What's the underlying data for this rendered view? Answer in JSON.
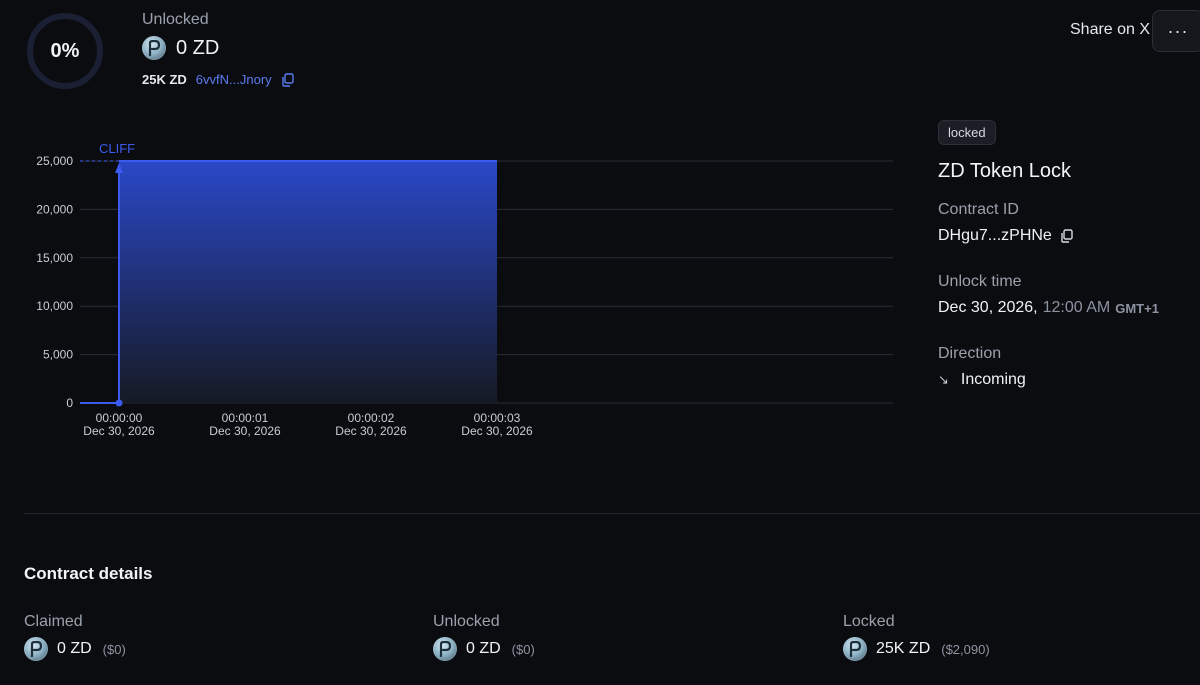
{
  "header": {
    "progress_text": "0%",
    "progress_fraction": 0,
    "unlocked_label": "Unlocked",
    "unlocked_amount": "0 ZD",
    "total_amount": "25K ZD",
    "recipient_short": "6vvfN...Jnory",
    "share_label": "Share on X",
    "menu_label": "···"
  },
  "chart_data": {
    "type": "area",
    "annotation": "CLIFF",
    "yticks": [
      "25,000",
      "20,000",
      "15,000",
      "10,000",
      "5,000",
      "0"
    ],
    "ylim": [
      0,
      25000
    ],
    "xticks": [
      {
        "time": "00:00:00",
        "date": "Dec 30, 2026"
      },
      {
        "time": "00:00:01",
        "date": "Dec 30, 2026"
      },
      {
        "time": "00:00:02",
        "date": "Dec 30, 2026"
      },
      {
        "time": "00:00:03",
        "date": "Dec 30, 2026"
      }
    ],
    "series": [
      {
        "x": [
          "00:00:00",
          "00:00:00",
          "00:00:03"
        ],
        "y": [
          0,
          25000,
          25000
        ]
      }
    ],
    "grid": true,
    "colors": {
      "line": "#3b5bf0",
      "fill_top": "#2a48c8",
      "fill_bottom": "#161a24"
    }
  },
  "info": {
    "status": "locked",
    "title": "ZD Token Lock",
    "contract_id_label": "Contract ID",
    "contract_id": "DHgu7...zPHNe",
    "unlock_time_label": "Unlock time",
    "unlock_date": "Dec 30, 2026,",
    "unlock_clock": "12:00 AM",
    "unlock_tz": "GMT+1",
    "direction_label": "Direction",
    "direction_arrow": "↘",
    "direction": "Incoming"
  },
  "details": {
    "title": "Contract details",
    "items": [
      {
        "label": "Claimed",
        "amount": "0 ZD",
        "usd": "($0)"
      },
      {
        "label": "Unlocked",
        "amount": "0 ZD",
        "usd": "($0)"
      },
      {
        "label": "Locked",
        "amount": "25K ZD",
        "usd": "($2,090)"
      }
    ]
  },
  "colors": {
    "background": "#0b0c10",
    "accent": "#3b5bf0",
    "link": "#5b7cf0",
    "muted": "#9aa1ad"
  }
}
